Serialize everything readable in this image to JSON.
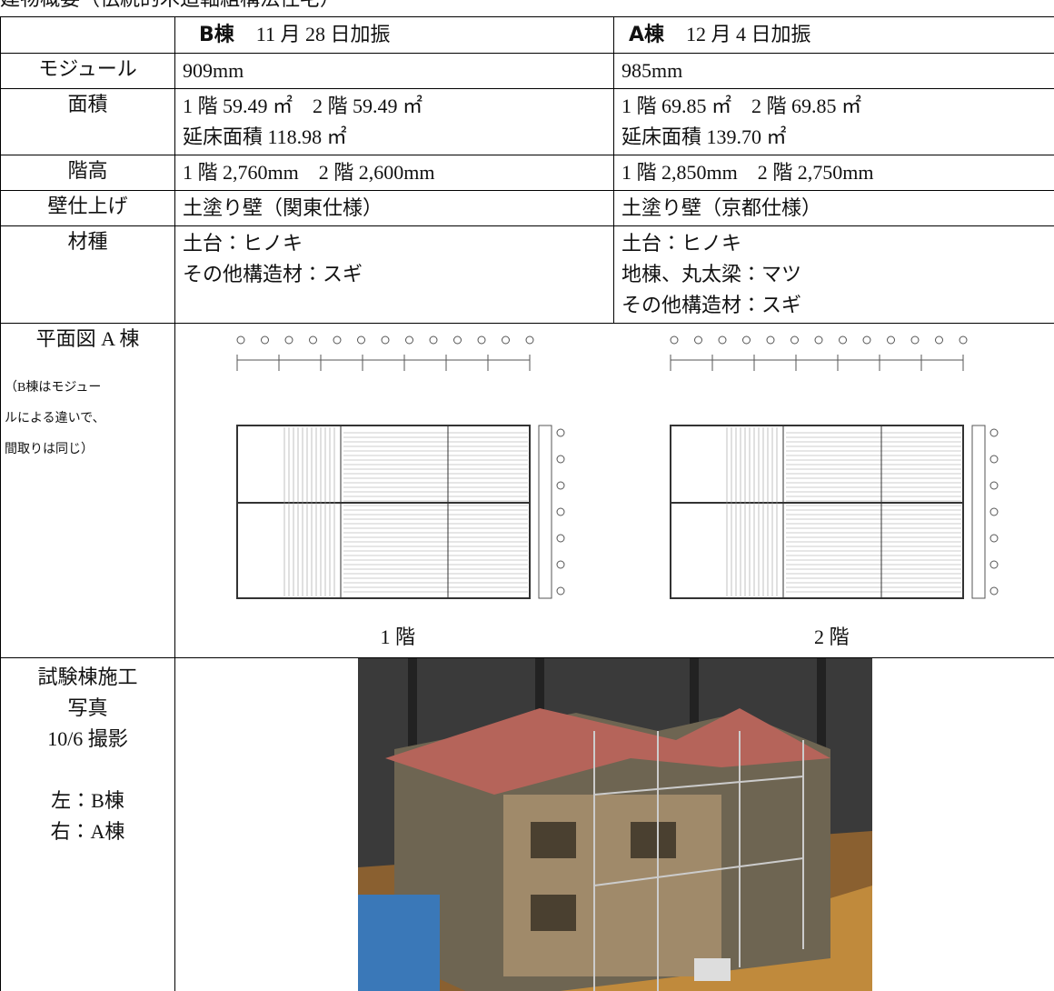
{
  "header": {
    "title": "建物概要（伝統的木造軸組構法住宅）"
  },
  "table": {
    "head": [
      {
        "name": "B棟",
        "date": "11 月 28 日加振"
      },
      {
        "name": "A棟",
        "date": "12 月 4 日加振"
      }
    ],
    "rows": [
      {
        "label": "モジュール",
        "b": [
          "909mm"
        ],
        "a": [
          "985mm"
        ]
      },
      {
        "label": "面積",
        "b": [
          "1 階 59.49 ㎡　2 階 59.49 ㎡",
          "延床面積 118.98 ㎡"
        ],
        "a": [
          "1 階 69.85 ㎡　2 階 69.85 ㎡",
          "延床面積 139.70 ㎡"
        ]
      },
      {
        "label": "階高",
        "b": [
          "1 階 2,760mm　2 階 2,600mm"
        ],
        "a": [
          "1 階 2,850mm　2 階 2,750mm"
        ]
      },
      {
        "label": "壁仕上げ",
        "b": [
          "土塗り壁（関東仕様）"
        ],
        "a": [
          "土塗り壁（京都仕様）"
        ]
      },
      {
        "label": "材種",
        "b": [
          "土台：ヒノキ",
          "その他構造材：スギ"
        ],
        "a": [
          "土台：ヒノキ",
          "地棟、丸太梁：マツ",
          "その他構造材：スギ"
        ]
      }
    ],
    "plan": {
      "label": "平面図 A 棟",
      "note": [
        "（B棟はモジュー",
        "ルによる違いで、",
        "間取りは同じ）"
      ],
      "captions": [
        "1 階",
        "2 階"
      ]
    },
    "photo": {
      "label": [
        "試験棟施工",
        "写真",
        "10/6 撮影",
        "左：B棟",
        "右：A棟"
      ]
    }
  }
}
